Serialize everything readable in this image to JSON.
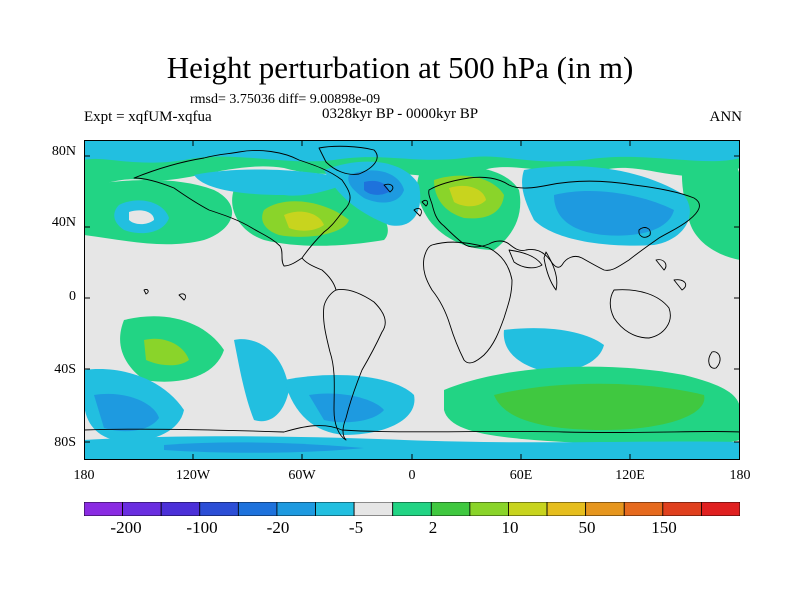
{
  "title": "Height perturbation at 500 hPa (in m)",
  "stats": "rmsd= 3.75036 diff= 9.00898e-09",
  "expt": "Expt = xqfUM-xqfua",
  "period": "0328kyr BP - 0000kyr BP",
  "season": "ANN",
  "map": {
    "lat_range": [
      -90,
      90
    ],
    "lon_range": [
      -180,
      180
    ],
    "y_tick_labels": [
      "80N",
      "40N",
      "0",
      "40S",
      "80S"
    ],
    "x_tick_labels": [
      "180",
      "120W",
      "60W",
      "0",
      "60E",
      "120E",
      "180"
    ]
  },
  "colorbar": {
    "colors": [
      "#8a2be2",
      "#6a2ee0",
      "#4b30d8",
      "#2c4ed6",
      "#1e72dc",
      "#1e9ae0",
      "#22bfe0",
      "#e6e6e6",
      "#22d484",
      "#40c840",
      "#8ad42a",
      "#c8d41e",
      "#e6be1e",
      "#e6961e",
      "#e66a1e",
      "#e0401e",
      "#e02020"
    ],
    "labels": [
      "-200",
      "-100",
      "-20",
      "-5",
      "2",
      "10",
      "50",
      "150"
    ]
  }
}
